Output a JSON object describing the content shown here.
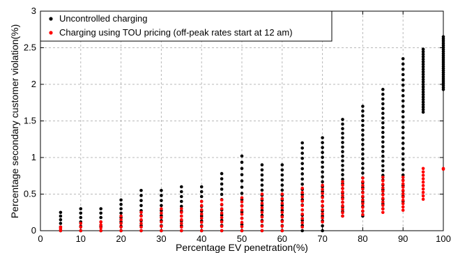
{
  "chart_data": {
    "type": "scatter",
    "title": "",
    "xlabel": "Percentage EV penetration(%)",
    "ylabel": "Percentage secondary customer violation(%)",
    "xlim": [
      0,
      100
    ],
    "ylim": [
      0,
      3
    ],
    "xticks": [
      "0",
      "10",
      "20",
      "30",
      "40",
      "50",
      "60",
      "70",
      "80",
      "90",
      "100"
    ],
    "yticks": [
      "0",
      "0.5",
      "1",
      "1.5",
      "2",
      "2.5",
      "3"
    ],
    "grid": true,
    "legend_position": "top-left",
    "series": [
      {
        "name": "Uncontrolled charging",
        "color": "#000000",
        "points": [
          {
            "x": 5,
            "ymin": 0.0,
            "ymax": 0.25,
            "n": 6
          },
          {
            "x": 10,
            "ymin": 0.0,
            "ymax": 0.3,
            "n": 6
          },
          {
            "x": 15,
            "ymin": 0.0,
            "ymax": 0.3,
            "n": 6
          },
          {
            "x": 20,
            "ymin": 0.0,
            "ymax": 0.42,
            "n": 8
          },
          {
            "x": 25,
            "ymin": 0.0,
            "ymax": 0.55,
            "n": 9
          },
          {
            "x": 30,
            "ymin": 0.0,
            "ymax": 0.55,
            "n": 9
          },
          {
            "x": 35,
            "ymin": 0.0,
            "ymax": 0.6,
            "n": 10
          },
          {
            "x": 40,
            "ymin": 0.0,
            "ymax": 0.6,
            "n": 10
          },
          {
            "x": 45,
            "ymin": 0.0,
            "ymax": 0.78,
            "n": 12
          },
          {
            "x": 50,
            "ymin": 0.0,
            "ymax": 1.02,
            "n": 13
          },
          {
            "x": 55,
            "ymin": 0.0,
            "ymax": 0.9,
            "n": 14
          },
          {
            "x": 60,
            "ymin": 0.0,
            "ymax": 0.9,
            "n": 14
          },
          {
            "x": 65,
            "ymin": 0.0,
            "ymax": 1.2,
            "n": 18
          },
          {
            "x": 70,
            "ymin": 0.0,
            "ymax": 1.27,
            "n": 20
          },
          {
            "x": 75,
            "ymin": 0.2,
            "ymax": 1.52,
            "n": 22
          },
          {
            "x": 80,
            "ymin": 0.2,
            "ymax": 1.7,
            "n": 24
          },
          {
            "x": 85,
            "ymin": 0.3,
            "ymax": 1.93,
            "n": 26
          },
          {
            "x": 90,
            "ymin": 0.4,
            "ymax": 2.35,
            "n": 28
          },
          {
            "x": 95,
            "ymin": 1.62,
            "ymax": 2.48,
            "n": 26
          },
          {
            "x": 100,
            "ymin": 1.93,
            "ymax": 2.65,
            "n": 26
          }
        ]
      },
      {
        "name": "Charging using TOU pricing (off-peak rates start at 12 am)",
        "color": "#ff0000",
        "points": [
          {
            "x": 5,
            "ymin": 0.0,
            "ymax": 0.05,
            "n": 3
          },
          {
            "x": 10,
            "ymin": 0.0,
            "ymax": 0.1,
            "n": 3
          },
          {
            "x": 15,
            "ymin": 0.0,
            "ymax": 0.12,
            "n": 4
          },
          {
            "x": 20,
            "ymin": 0.0,
            "ymax": 0.2,
            "n": 5
          },
          {
            "x": 25,
            "ymin": 0.0,
            "ymax": 0.25,
            "n": 6
          },
          {
            "x": 30,
            "ymin": 0.0,
            "ymax": 0.3,
            "n": 6
          },
          {
            "x": 35,
            "ymin": 0.0,
            "ymax": 0.3,
            "n": 7
          },
          {
            "x": 40,
            "ymin": 0.0,
            "ymax": 0.4,
            "n": 8
          },
          {
            "x": 45,
            "ymin": 0.0,
            "ymax": 0.42,
            "n": 8
          },
          {
            "x": 50,
            "ymin": 0.0,
            "ymax": 0.45,
            "n": 9
          },
          {
            "x": 55,
            "ymin": 0.0,
            "ymax": 0.5,
            "n": 9
          },
          {
            "x": 60,
            "ymin": 0.0,
            "ymax": 0.5,
            "n": 9
          },
          {
            "x": 65,
            "ymin": 0.05,
            "ymax": 0.58,
            "n": 10
          },
          {
            "x": 70,
            "ymin": 0.12,
            "ymax": 0.62,
            "n": 10
          },
          {
            "x": 75,
            "ymin": 0.2,
            "ymax": 0.67,
            "n": 11
          },
          {
            "x": 80,
            "ymin": 0.22,
            "ymax": 0.72,
            "n": 11
          },
          {
            "x": 85,
            "ymin": 0.25,
            "ymax": 0.73,
            "n": 11
          },
          {
            "x": 90,
            "ymin": 0.28,
            "ymax": 0.73,
            "n": 11
          },
          {
            "x": 95,
            "ymin": 0.43,
            "ymax": 0.85,
            "n": 10
          },
          {
            "x": 100,
            "ymin": 0.84,
            "ymax": 0.85,
            "n": 2
          }
        ]
      }
    ]
  }
}
